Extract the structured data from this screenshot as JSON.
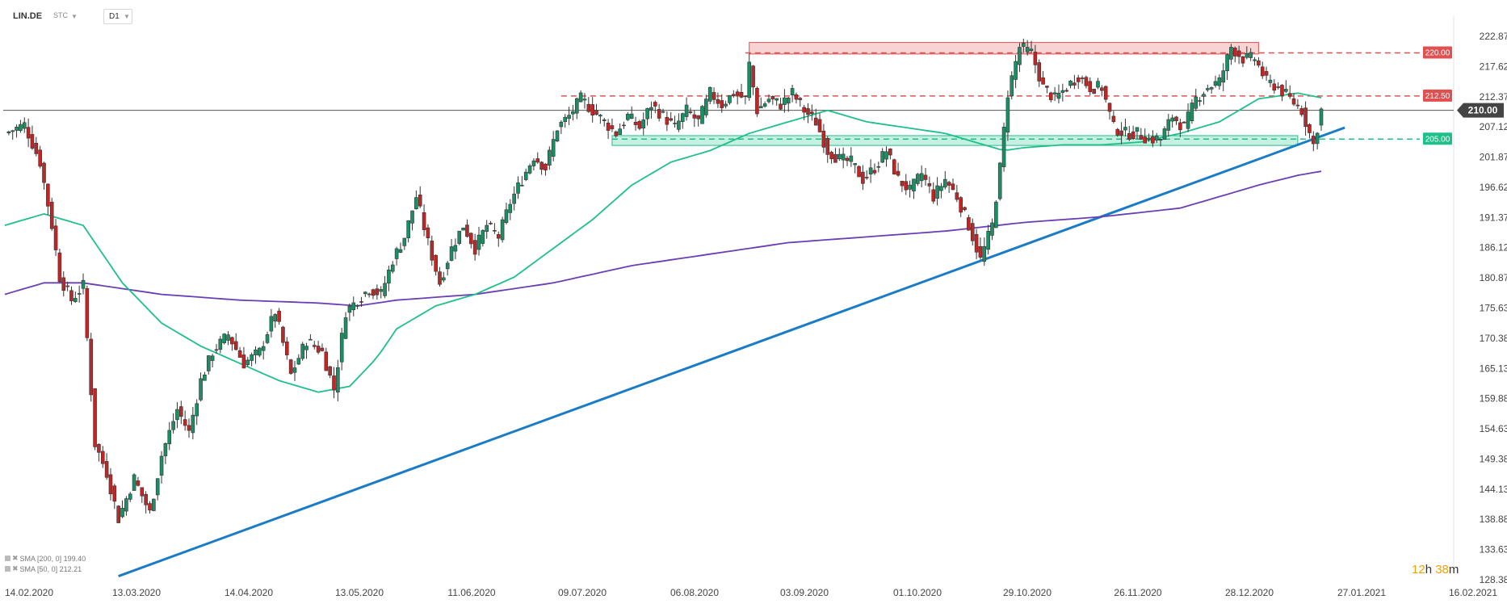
{
  "header": {
    "symbol": "LIN.DE",
    "type": "STC",
    "timeframe": "D1"
  },
  "indicators": [
    {
      "label": "SMA [200, 0] 199.40",
      "color": "#6a3fb5"
    },
    {
      "label": "SMA [50, 0] 212.21",
      "color": "#1ec08a"
    }
  ],
  "timer": {
    "hours": "12",
    "h_unit": "h",
    "minutes": "38",
    "m_unit": "m"
  },
  "chart_data": {
    "type": "candlestick",
    "y_ticks": [
      222.87,
      217.62,
      212.37,
      207.12,
      201.87,
      196.62,
      191.37,
      186.12,
      180.87,
      175.63,
      170.38,
      165.13,
      159.88,
      154.63,
      149.38,
      144.13,
      138.88,
      133.63,
      128.38
    ],
    "y_tick_labels": [
      "222.87",
      "217.62",
      "212.37",
      "207.12",
      "201.87",
      "196.62",
      "191.37",
      "186.12",
      "180.87",
      "175.63",
      "170.38",
      "165.13",
      "159.88",
      "154.63",
      "149.38",
      "144.13",
      "138.88",
      "133.63",
      "128.38"
    ],
    "x_labels": [
      "14.02.2020",
      "13.03.2020",
      "14.04.2020",
      "13.05.2020",
      "11.06.2020",
      "09.07.2020",
      "06.08.2020",
      "03.09.2020",
      "01.10.2020",
      "29.10.2020",
      "26.11.2020",
      "28.12.2020",
      "27.01.2021",
      "16.02.2021"
    ],
    "ylim": [
      128.38,
      222.87
    ],
    "current_price": {
      "value": 210.0,
      "label": "210.00",
      "color": "#555555"
    },
    "levels": [
      {
        "value": 220.0,
        "label": "220.00",
        "color": "#e05050"
      },
      {
        "value": 212.5,
        "label": "212.50",
        "color": "#e05050"
      },
      {
        "value": 205.0,
        "label": "205.00",
        "color": "#1ec08a"
      }
    ],
    "zones": [
      {
        "from_bar": 190,
        "to_bar": 320,
        "low": 219.8,
        "high": 221.8,
        "color": "#e05050"
      },
      {
        "from_bar": 155,
        "to_bar": 330,
        "low": 203.9,
        "high": 205.6,
        "color": "#1ec08a"
      }
    ],
    "trendline": {
      "from_bar": 29,
      "from_price": 129.0,
      "to_bar": 342,
      "to_price": 207.0,
      "color": "#1a7cc7"
    },
    "close_path": [
      [
        0,
        206.0
      ],
      [
        5,
        207.5
      ],
      [
        9,
        201.0
      ],
      [
        12,
        190.0
      ],
      [
        14,
        181.0
      ],
      [
        17,
        177.0
      ],
      [
        20,
        179.5
      ],
      [
        23,
        152.0
      ],
      [
        26,
        147.0
      ],
      [
        29,
        139.0
      ],
      [
        33,
        146.0
      ],
      [
        37,
        140.0
      ],
      [
        40,
        150.0
      ],
      [
        44,
        158.0
      ],
      [
        47,
        154.0
      ],
      [
        50,
        163.0
      ],
      [
        53,
        168.0
      ],
      [
        57,
        171.0
      ],
      [
        61,
        166.0
      ],
      [
        65,
        168.0
      ],
      [
        69,
        175.0
      ],
      [
        73,
        164.0
      ],
      [
        77,
        170.0
      ],
      [
        81,
        168.0
      ],
      [
        84,
        161.5
      ],
      [
        87,
        175.0
      ],
      [
        90,
        177.0
      ],
      [
        93,
        179.0
      ],
      [
        96,
        178.0
      ],
      [
        99,
        184.0
      ],
      [
        102,
        188.0
      ],
      [
        105,
        195.0
      ],
      [
        108,
        187.0
      ],
      [
        111,
        180.0
      ],
      [
        114,
        186.0
      ],
      [
        117,
        190.0
      ],
      [
        120,
        186.0
      ],
      [
        123,
        190.0
      ],
      [
        126,
        188.0
      ],
      [
        129,
        194.0
      ],
      [
        132,
        198.0
      ],
      [
        135,
        202.0
      ],
      [
        138,
        200.0
      ],
      [
        141,
        207.0
      ],
      [
        144,
        209.0
      ],
      [
        147,
        212.0
      ],
      [
        150,
        210.0
      ],
      [
        153,
        208.0
      ],
      [
        156,
        206.0
      ],
      [
        159,
        209.0
      ],
      [
        162,
        207.0
      ],
      [
        165,
        211.0
      ],
      [
        168,
        209.0
      ],
      [
        171,
        207.0
      ],
      [
        174,
        210.0
      ],
      [
        177,
        208.0
      ],
      [
        180,
        213.0
      ],
      [
        183,
        211.0
      ],
      [
        186,
        213.0
      ],
      [
        189,
        212.0
      ],
      [
        190,
        218.0
      ],
      [
        192,
        210.0
      ],
      [
        195,
        212.0
      ],
      [
        198,
        211.0
      ],
      [
        201,
        213.0
      ],
      [
        204,
        210.0
      ],
      [
        207,
        208.0
      ],
      [
        210,
        203.0
      ],
      [
        213,
        201.5
      ],
      [
        216,
        201.0
      ],
      [
        219,
        198.0
      ],
      [
        222,
        200.0
      ],
      [
        225,
        203.0
      ],
      [
        228,
        198.0
      ],
      [
        231,
        196.0
      ],
      [
        234,
        199.0
      ],
      [
        237,
        195.0
      ],
      [
        240,
        198.0
      ],
      [
        243,
        195.0
      ],
      [
        246,
        190.0
      ],
      [
        249,
        184.0
      ],
      [
        252,
        190.0
      ],
      [
        254,
        200.0
      ],
      [
        256,
        213.0
      ],
      [
        259,
        221.0
      ],
      [
        262,
        220.0
      ],
      [
        265,
        214.0
      ],
      [
        268,
        212.0
      ],
      [
        271,
        214.0
      ],
      [
        274,
        216.0
      ],
      [
        277,
        214.0
      ],
      [
        280,
        214.0
      ],
      [
        283,
        207.0
      ],
      [
        286,
        206.0
      ],
      [
        289,
        206.0
      ],
      [
        292,
        205.0
      ],
      [
        295,
        205.0
      ],
      [
        298,
        209.0
      ],
      [
        301,
        207.0
      ],
      [
        304,
        212.0
      ],
      [
        307,
        214.0
      ],
      [
        310,
        215.0
      ],
      [
        313,
        221.0
      ],
      [
        316,
        219.0
      ],
      [
        319,
        219.0
      ],
      [
        322,
        215.0
      ],
      [
        325,
        214.0
      ],
      [
        328,
        212.0
      ],
      [
        331,
        210.0
      ],
      [
        334,
        204.0
      ],
      [
        336,
        210.0
      ]
    ],
    "sma50_path": [
      [
        0,
        190.0
      ],
      [
        10,
        192.0
      ],
      [
        20,
        190.0
      ],
      [
        30,
        180.0
      ],
      [
        40,
        173.0
      ],
      [
        50,
        169.0
      ],
      [
        60,
        166.0
      ],
      [
        70,
        163.0
      ],
      [
        80,
        161.0
      ],
      [
        88,
        162.0
      ],
      [
        95,
        167.0
      ],
      [
        100,
        172.0
      ],
      [
        110,
        176.0
      ],
      [
        120,
        178.0
      ],
      [
        130,
        181.0
      ],
      [
        140,
        186.0
      ],
      [
        150,
        191.0
      ],
      [
        160,
        197.0
      ],
      [
        170,
        201.0
      ],
      [
        180,
        203.0
      ],
      [
        190,
        206.0
      ],
      [
        200,
        208.0
      ],
      [
        210,
        210.0
      ],
      [
        220,
        208.0
      ],
      [
        230,
        207.0
      ],
      [
        240,
        206.0
      ],
      [
        250,
        204.0
      ],
      [
        255,
        203.0
      ],
      [
        260,
        203.5
      ],
      [
        270,
        204.0
      ],
      [
        280,
        204.0
      ],
      [
        290,
        204.5
      ],
      [
        300,
        206.0
      ],
      [
        310,
        208.0
      ],
      [
        320,
        212.0
      ],
      [
        330,
        213.0
      ],
      [
        336,
        212.2
      ]
    ],
    "sma200_path": [
      [
        0,
        178.0
      ],
      [
        10,
        180.0
      ],
      [
        20,
        180.0
      ],
      [
        40,
        178.0
      ],
      [
        60,
        177.0
      ],
      [
        80,
        176.5
      ],
      [
        90,
        176.0
      ],
      [
        100,
        177.0
      ],
      [
        120,
        178.0
      ],
      [
        140,
        180.0
      ],
      [
        160,
        183.0
      ],
      [
        180,
        185.0
      ],
      [
        200,
        187.0
      ],
      [
        220,
        188.0
      ],
      [
        240,
        189.0
      ],
      [
        260,
        190.5
      ],
      [
        280,
        191.5
      ],
      [
        300,
        193.0
      ],
      [
        310,
        195.0
      ],
      [
        320,
        197.0
      ],
      [
        330,
        198.7
      ],
      [
        336,
        199.4
      ]
    ]
  }
}
